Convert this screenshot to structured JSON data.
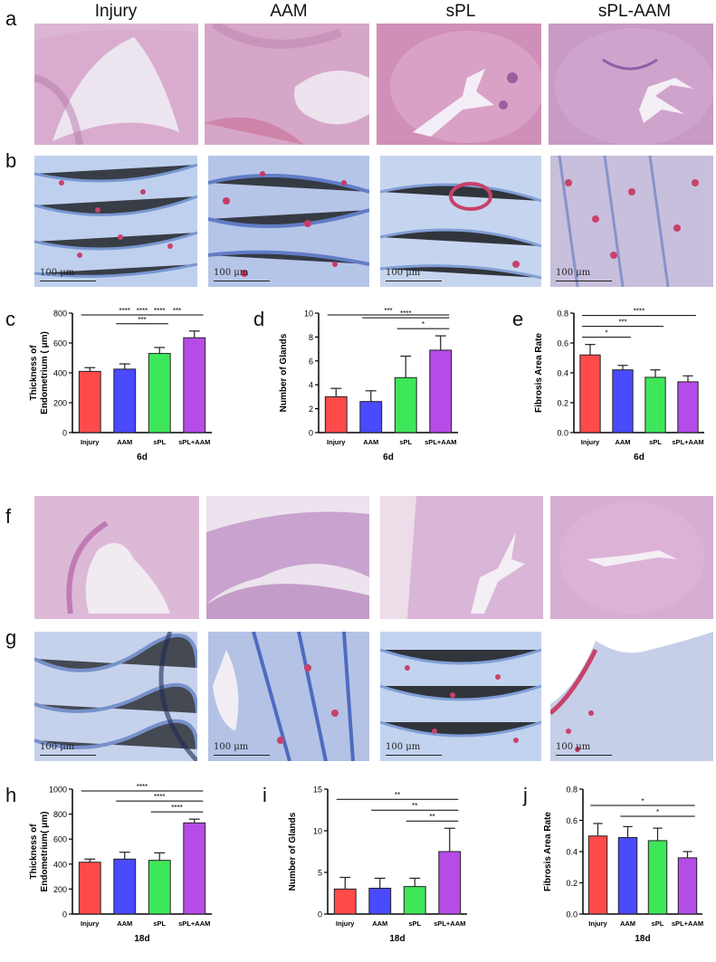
{
  "columns": [
    "Injury",
    "AAM",
    "sPL",
    "sPL-AAM"
  ],
  "panel_letters": {
    "a": "a",
    "b": "b",
    "c": "c",
    "d": "d",
    "e": "e",
    "f": "f",
    "g": "g",
    "h": "h",
    "i": "i",
    "j": "j"
  },
  "scale_label": "100 μm",
  "image_tints": {
    "he_light": "#e8cde0",
    "he_dark": "#c98ab8",
    "masson_blue": "#6d8fd0",
    "masson_red": "#c8426a",
    "masson_bg": "#d8e4f4"
  },
  "colors": {
    "Injury": "#ff4a4a",
    "AAM": "#4a4aff",
    "sPL": "#3ee65a",
    "sPL+AAM": "#b54ce8"
  },
  "chart_data": [
    {
      "id": "c",
      "type": "bar",
      "categories": [
        "Injury",
        "AAM",
        "sPL",
        "sPL+AAM"
      ],
      "values": [
        410,
        425,
        530,
        635
      ],
      "errors": [
        25,
        35,
        40,
        45
      ],
      "ylabel": "Thickness of\nEndometrium ( μm)",
      "xlabel": "6d",
      "ylim": [
        0,
        800
      ],
      "yticks": [
        0,
        200,
        400,
        600,
        800
      ],
      "sig": [
        {
          "from": 0,
          "to": 3,
          "label": "****"
        },
        {
          "from": 0,
          "to": 2,
          "label": "****"
        },
        {
          "from": 1,
          "to": 3,
          "label": "****"
        },
        {
          "from": 1,
          "to": 2,
          "label": "***"
        },
        {
          "from": 2,
          "to": 3,
          "label": "***"
        }
      ]
    },
    {
      "id": "d",
      "type": "bar",
      "categories": [
        "Injury",
        "AAM",
        "sPL",
        "sPL+AAM"
      ],
      "values": [
        3.0,
        2.6,
        4.6,
        6.9
      ],
      "errors": [
        0.7,
        0.9,
        1.8,
        1.2
      ],
      "ylabel": "Number of Glands",
      "xlabel": "6d",
      "ylim": [
        0,
        10
      ],
      "yticks": [
        0,
        2,
        4,
        6,
        8,
        10
      ],
      "sig": [
        {
          "from": 0,
          "to": 3,
          "label": "***"
        },
        {
          "from": 1,
          "to": 3,
          "label": "****"
        },
        {
          "from": 2,
          "to": 3,
          "label": "*"
        }
      ]
    },
    {
      "id": "e",
      "type": "bar",
      "categories": [
        "Injury",
        "AAM",
        "sPL",
        "sPL+AAM"
      ],
      "values": [
        0.52,
        0.42,
        0.37,
        0.34
      ],
      "errors": [
        0.07,
        0.03,
        0.05,
        0.04
      ],
      "ylabel": "Fibrosis Area Rate",
      "xlabel": "6d",
      "ylim": [
        0,
        0.8
      ],
      "yticks": [
        0.0,
        0.2,
        0.4,
        0.6,
        0.8
      ],
      "sig": [
        {
          "from": 0,
          "to": 3,
          "label": "****"
        },
        {
          "from": 0,
          "to": 2,
          "label": "***"
        },
        {
          "from": 0,
          "to": 1,
          "label": "*"
        }
      ]
    },
    {
      "id": "h",
      "type": "bar",
      "categories": [
        "Injury",
        "AAM",
        "sPL",
        "sPL+AAM"
      ],
      "values": [
        415,
        440,
        430,
        730
      ],
      "errors": [
        25,
        55,
        60,
        30
      ],
      "ylabel": "Thickness of\nEndometrium( μm)",
      "xlabel": "18d",
      "ylim": [
        0,
        1000
      ],
      "yticks": [
        0,
        200,
        400,
        600,
        800,
        1000
      ],
      "sig": [
        {
          "from": 0,
          "to": 3,
          "label": "****"
        },
        {
          "from": 1,
          "to": 3,
          "label": "****"
        },
        {
          "from": 2,
          "to": 3,
          "label": "****"
        }
      ]
    },
    {
      "id": "i",
      "type": "bar",
      "categories": [
        "Injury",
        "AAM",
        "sPL",
        "sPL+AAM"
      ],
      "values": [
        3.0,
        3.1,
        3.3,
        7.5
      ],
      "errors": [
        1.4,
        1.2,
        1.0,
        2.8
      ],
      "ylabel": "Number of Glands",
      "xlabel": "18d",
      "ylim": [
        0,
        15
      ],
      "yticks": [
        0,
        5,
        10,
        15
      ],
      "sig": [
        {
          "from": 0,
          "to": 3,
          "label": "**"
        },
        {
          "from": 1,
          "to": 3,
          "label": "**"
        },
        {
          "from": 2,
          "to": 3,
          "label": "**"
        }
      ]
    },
    {
      "id": "j",
      "type": "bar",
      "categories": [
        "Injury",
        "AAM",
        "sPL",
        "sPL+AAM"
      ],
      "values": [
        0.5,
        0.49,
        0.47,
        0.36
      ],
      "errors": [
        0.08,
        0.07,
        0.08,
        0.04
      ],
      "ylabel": "Fibrosis Area Rate",
      "xlabel": "18d",
      "ylim": [
        0,
        0.8
      ],
      "yticks": [
        0.0,
        0.2,
        0.4,
        0.6,
        0.8
      ],
      "sig": [
        {
          "from": 0,
          "to": 3,
          "label": "*"
        },
        {
          "from": 1,
          "to": 3,
          "label": "*"
        }
      ]
    }
  ]
}
